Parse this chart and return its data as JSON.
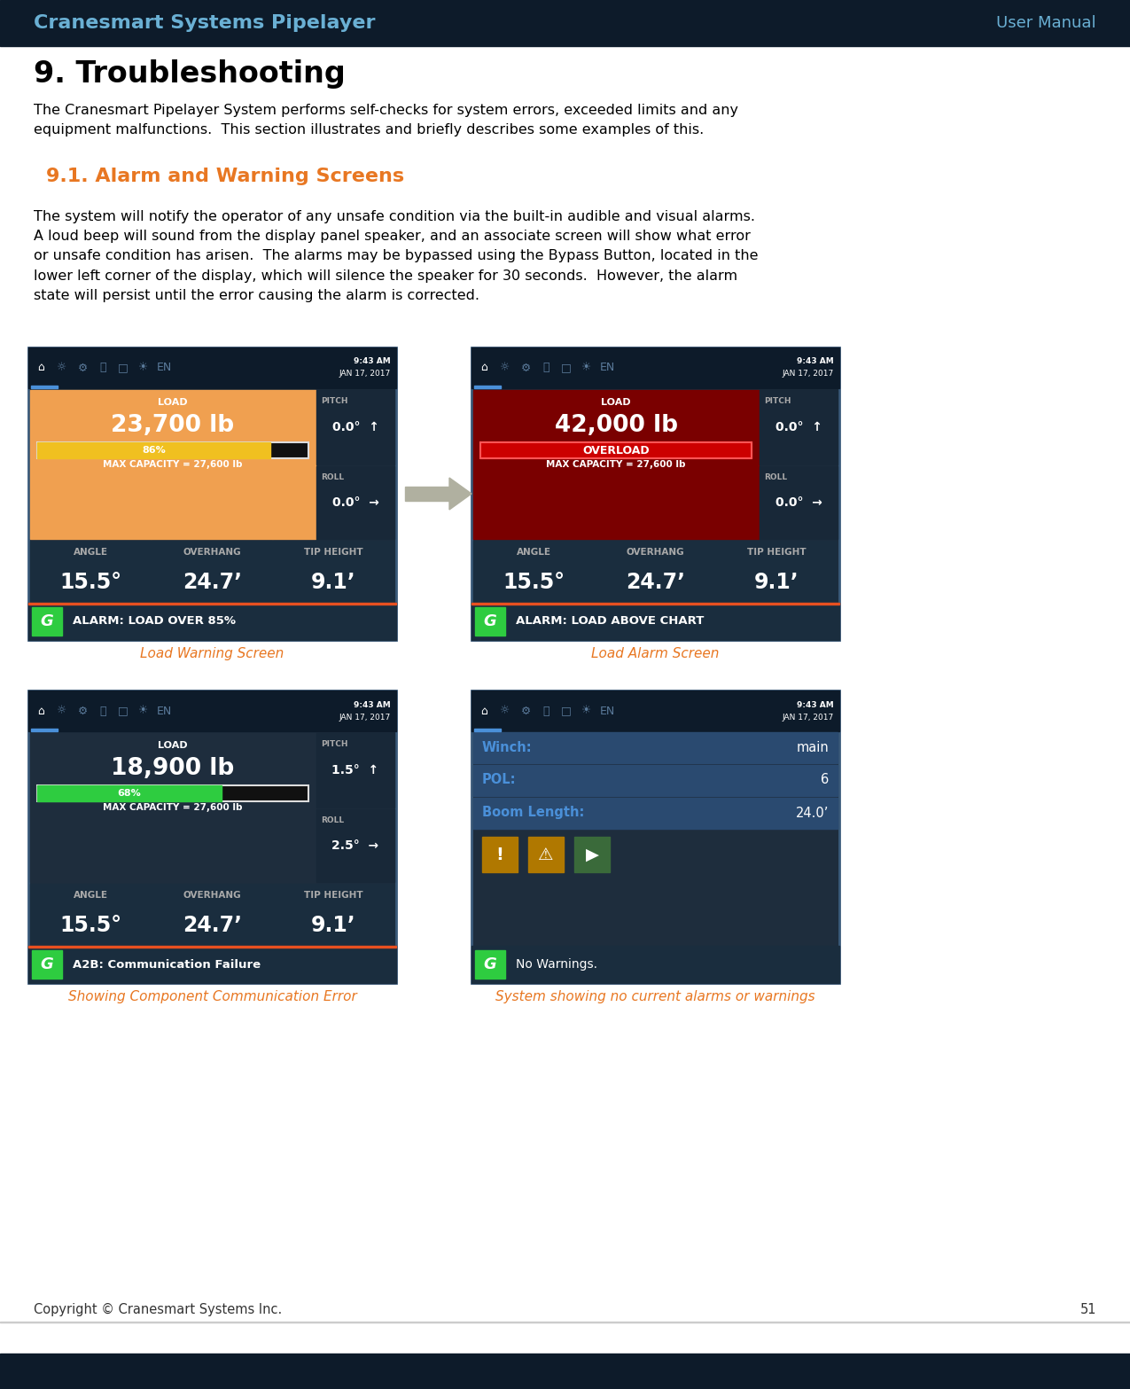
{
  "header_bg": "#0d1b2a",
  "header_text_left": "Cranesmart Systems Pipelayer",
  "header_text_right": "User Manual",
  "header_text_color": "#6ab0d4",
  "footer_text": "Copyright © Cranesmart Systems Inc.",
  "footer_page": "51",
  "title": "9. Troubleshooting",
  "body_text1": "The Cranesmart Pipelayer System performs self-checks for system errors, exceeded limits and any\nequipment malfunctions.  This section illustrates and briefly describes some examples of this.",
  "section_title": "9.1. Alarm and Warning Screens",
  "section_title_color": "#e87722",
  "body_text2": "The system will notify the operator of any unsafe condition via the built-in audible and visual alarms.\nA loud beep will sound from the display panel speaker, and an associate screen will show what error\nor unsafe condition has arisen.  The alarms may be bypassed using the Bypass Button, located in the\nlower left corner of the display, which will silence the speaker for 30 seconds.  However, the alarm\nstate will persist until the error causing the alarm is corrected.",
  "screen_bg": "#1e2d3d",
  "screen_header_bg": "#0d1b2a",
  "caption_color": "#e87722",
  "screens": [
    {
      "label": "Load Warning Screen",
      "position": "top_left",
      "load_bg": "#f0a050",
      "load_value": "23,700 lb",
      "bar_pct": 86,
      "bar_color": "#f0c020",
      "max_cap": "MAX CAPACITY = 27,600 lb",
      "angle": "15.5°",
      "overhang": "24.7’",
      "tip_height": "9.1’",
      "alarm_text": "ALARM: LOAD OVER 85%",
      "pitch": "0.0°",
      "roll": "0.0°",
      "has_overload_bar": false
    },
    {
      "label": "Load Alarm Screen",
      "position": "top_right",
      "load_bg": "#7a0000",
      "load_value": "42,000 lb",
      "bar_pct": 100,
      "bar_color": "#cc0000",
      "max_cap": "MAX CAPACITY = 27,600 lb",
      "angle": "15.5°",
      "overhang": "24.7’",
      "tip_height": "9.1’",
      "alarm_text": "ALARM: LOAD ABOVE CHART",
      "pitch": "0.0°",
      "roll": "0.0°",
      "has_overload_bar": true
    },
    {
      "label": "Showing Component Communication Error",
      "position": "bottom_left",
      "load_bg": "#1e2d3d",
      "load_value": "18,900 lb",
      "bar_pct": 68,
      "bar_color": "#2ecc40",
      "max_cap": "MAX CAPACITY = 27,600 lb",
      "angle": "15.5°",
      "overhang": "24.7’",
      "tip_height": "9.1’",
      "alarm_text": "A2B: Communication Failure",
      "pitch": "1.5°",
      "roll": "2.5°",
      "has_overload_bar": false
    },
    {
      "label": "System showing no current alarms or warnings",
      "position": "bottom_right",
      "alarm_text": "No Warnings.",
      "winch": "main",
      "pol": "6",
      "boom_length": "24.0’"
    }
  ]
}
